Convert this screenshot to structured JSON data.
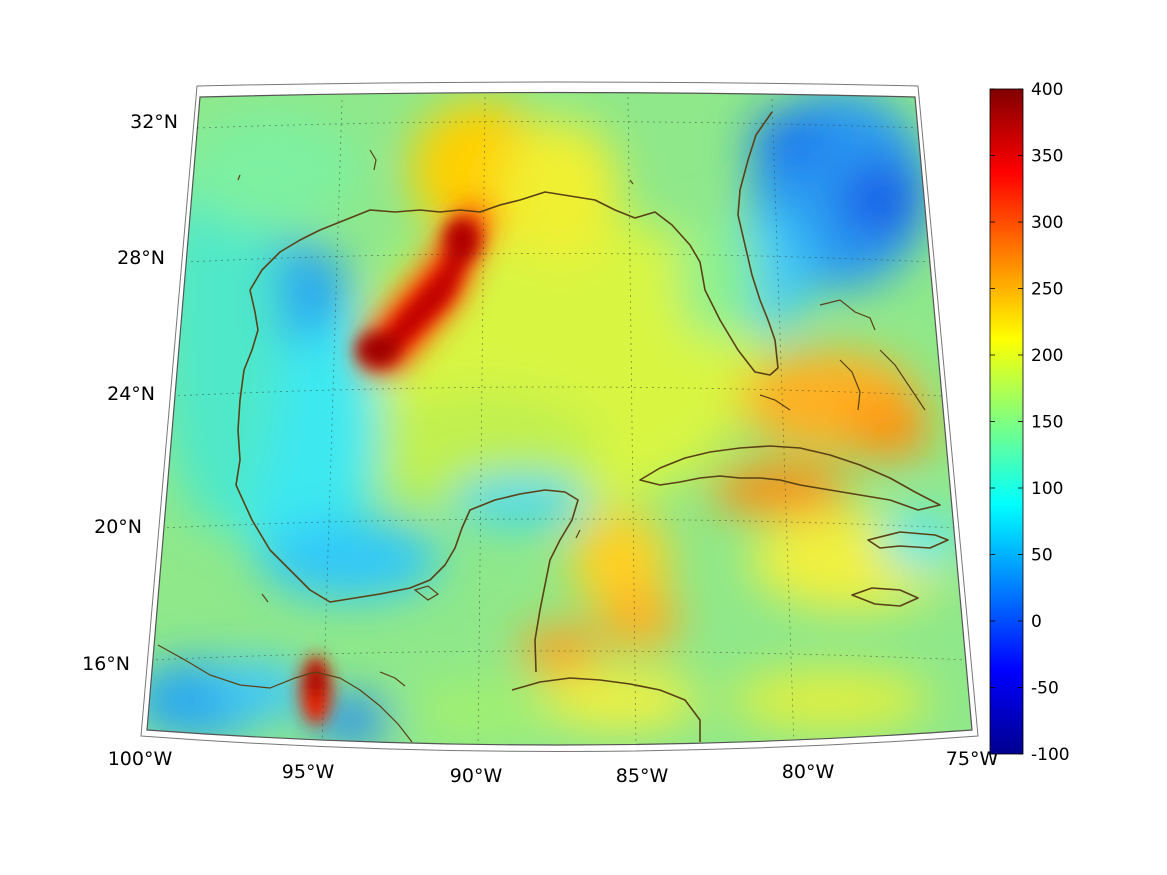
{
  "map": {
    "projection": "conic",
    "lon_labels": [
      "100°W",
      "95°W",
      "90°W",
      "85°W",
      "80°W",
      "75°W"
    ],
    "lat_labels": [
      "16°N",
      "20°N",
      "24°N",
      "28°N",
      "32°N"
    ],
    "coastline_color": "#5a4116",
    "field": "scalar field, jet colormap"
  },
  "colorbar": {
    "colormap": "jet",
    "min": -100,
    "max": 400,
    "ticks": [
      "400",
      "350",
      "300",
      "250",
      "200",
      "150",
      "100",
      "50",
      "0",
      "-50",
      "-100"
    ]
  }
}
